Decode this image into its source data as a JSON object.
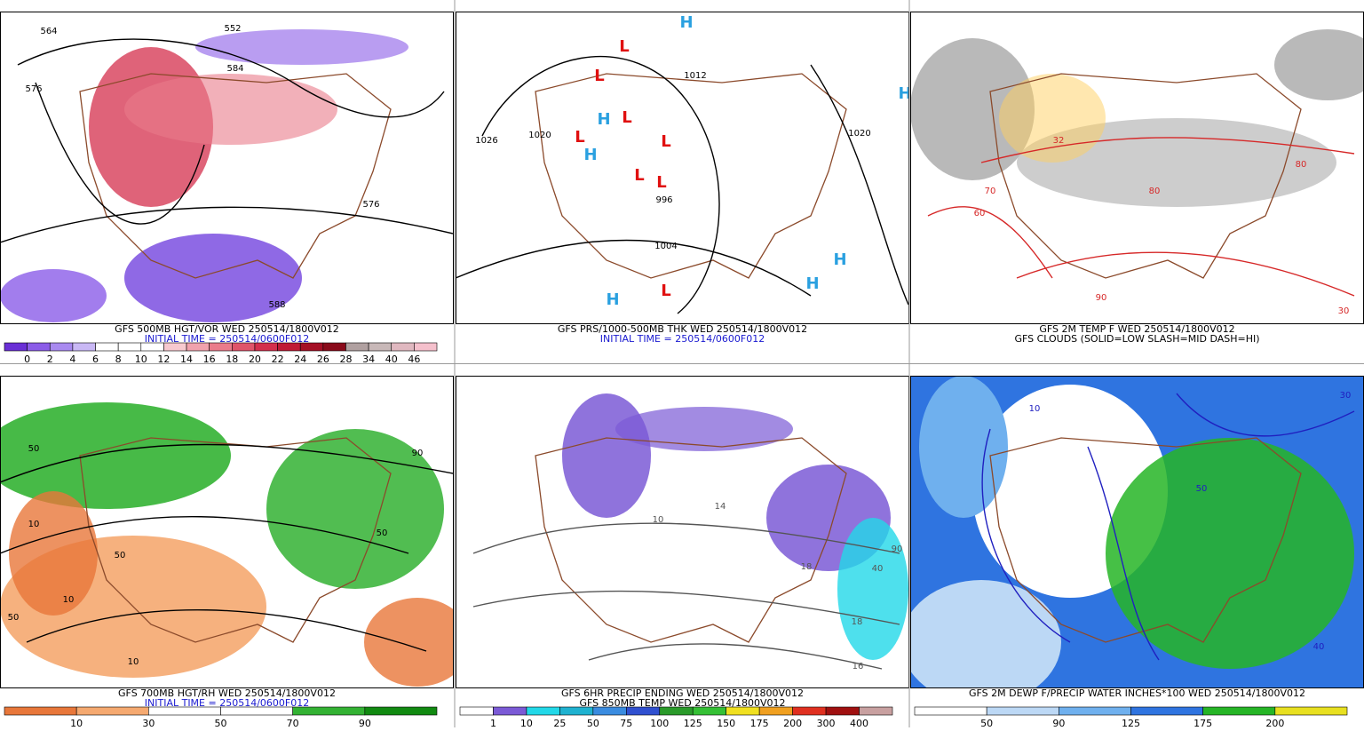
{
  "panels": [
    {
      "captions": [
        "GFS 500MB HGT/VOR WED 250514/1800V012",
        "INITIAL TIME = 250514/0600F012"
      ],
      "caption_colors": [
        "#000000",
        "#1a1ad0"
      ],
      "colorbar": {
        "labels": [
          "0",
          "2",
          "4",
          "6",
          "8",
          "10",
          "12",
          "14",
          "16",
          "18",
          "20",
          "22",
          "24",
          "26",
          "28",
          "34",
          "40",
          "46"
        ],
        "colors": [
          "#6a2fd6",
          "#8b5ce8",
          "#a98af0",
          "#c9b8f5",
          "#ffffff",
          "#ffffff",
          "#ffffff",
          "#f7c9cf",
          "#f1a2ad",
          "#ea7b8b",
          "#e0546a",
          "#d42f4c",
          "#c01a35",
          "#a50f25",
          "#8a0a1a",
          "#b0a0a0",
          "#c8b8b8",
          "#e0b8c0",
          "#f5c0cc"
        ]
      },
      "map_labels": [
        "564",
        "552",
        "584",
        "576",
        "576",
        "588"
      ]
    },
    {
      "captions": [
        "GFS PRS/1000-500MB THK WED 250514/1800V012",
        "INITIAL TIME = 250514/0600F012"
      ],
      "caption_colors": [
        "#000000",
        "#1a1ad0"
      ],
      "map_labels": [
        "1026",
        "1020",
        "1004",
        "996",
        "1012",
        "1020"
      ],
      "lows": [
        "L",
        "L",
        "L",
        "L",
        "L",
        "L",
        "L",
        "L"
      ],
      "highs": [
        "H",
        "H",
        "H",
        "H",
        "H",
        "H",
        "H"
      ]
    },
    {
      "captions": [
        "GFS 2M TEMP F WED 250514/1800V012",
        "GFS CLOUDS (SOLID=LOW SLASH=MID DASH=HI)"
      ],
      "caption_colors": [
        "#000000",
        "#000000"
      ],
      "map_labels": [
        "70",
        "60",
        "80",
        "80",
        "90",
        "32",
        "30"
      ]
    },
    {
      "captions": [
        "GFS 700MB HGT/RH WED 250514/1800V012",
        "INITIAL TIME = 250514/0600F012"
      ],
      "caption_colors": [
        "#000000",
        "#1a1ad0"
      ],
      "colorbar": {
        "labels": [
          "10",
          "30",
          "50",
          "70",
          "90"
        ],
        "colors": [
          "#e8773a",
          "#f5a970",
          "#ffffff",
          "#ffffff",
          "#33b233",
          "#118a11"
        ]
      },
      "map_labels": [
        "50",
        "10",
        "50",
        "10",
        "10",
        "50",
        "90",
        "50"
      ]
    },
    {
      "captions": [
        "GFS 6HR PRECIP ENDING WED 250514/1800V012",
        "GFS 850MB TEMP WED 250514/1800V012"
      ],
      "caption_colors": [
        "#000000",
        "#000000"
      ],
      "colorbar": {
        "labels": [
          "1",
          "10",
          "25",
          "50",
          "75",
          "100",
          "125",
          "150",
          "175",
          "200",
          "300",
          "400"
        ],
        "colors": [
          "#ffffff",
          "#7b5ad6",
          "#22d8e8",
          "#1fb2d0",
          "#3a8ce0",
          "#3050d0",
          "#2a9a2a",
          "#35c035",
          "#f0e020",
          "#f0a020",
          "#e03020",
          "#a01010",
          "#c8a0a0"
        ]
      },
      "map_labels": [
        "90",
        "40",
        "18",
        "16",
        "14",
        "18",
        "10"
      ]
    },
    {
      "captions": [
        "GFS 2M DEWP F/PRECIP WATER INCHES*100 WED 250514/1800V012"
      ],
      "caption_colors": [
        "#000000"
      ],
      "colorbar": {
        "labels": [
          "50",
          "90",
          "125",
          "175",
          "200"
        ],
        "colors": [
          "#ffffff",
          "#bcd8f5",
          "#6fb0ee",
          "#2f74e0",
          "#26b526",
          "#e8e020"
        ]
      },
      "map_labels": [
        "50",
        "30",
        "10",
        "40"
      ]
    }
  ]
}
